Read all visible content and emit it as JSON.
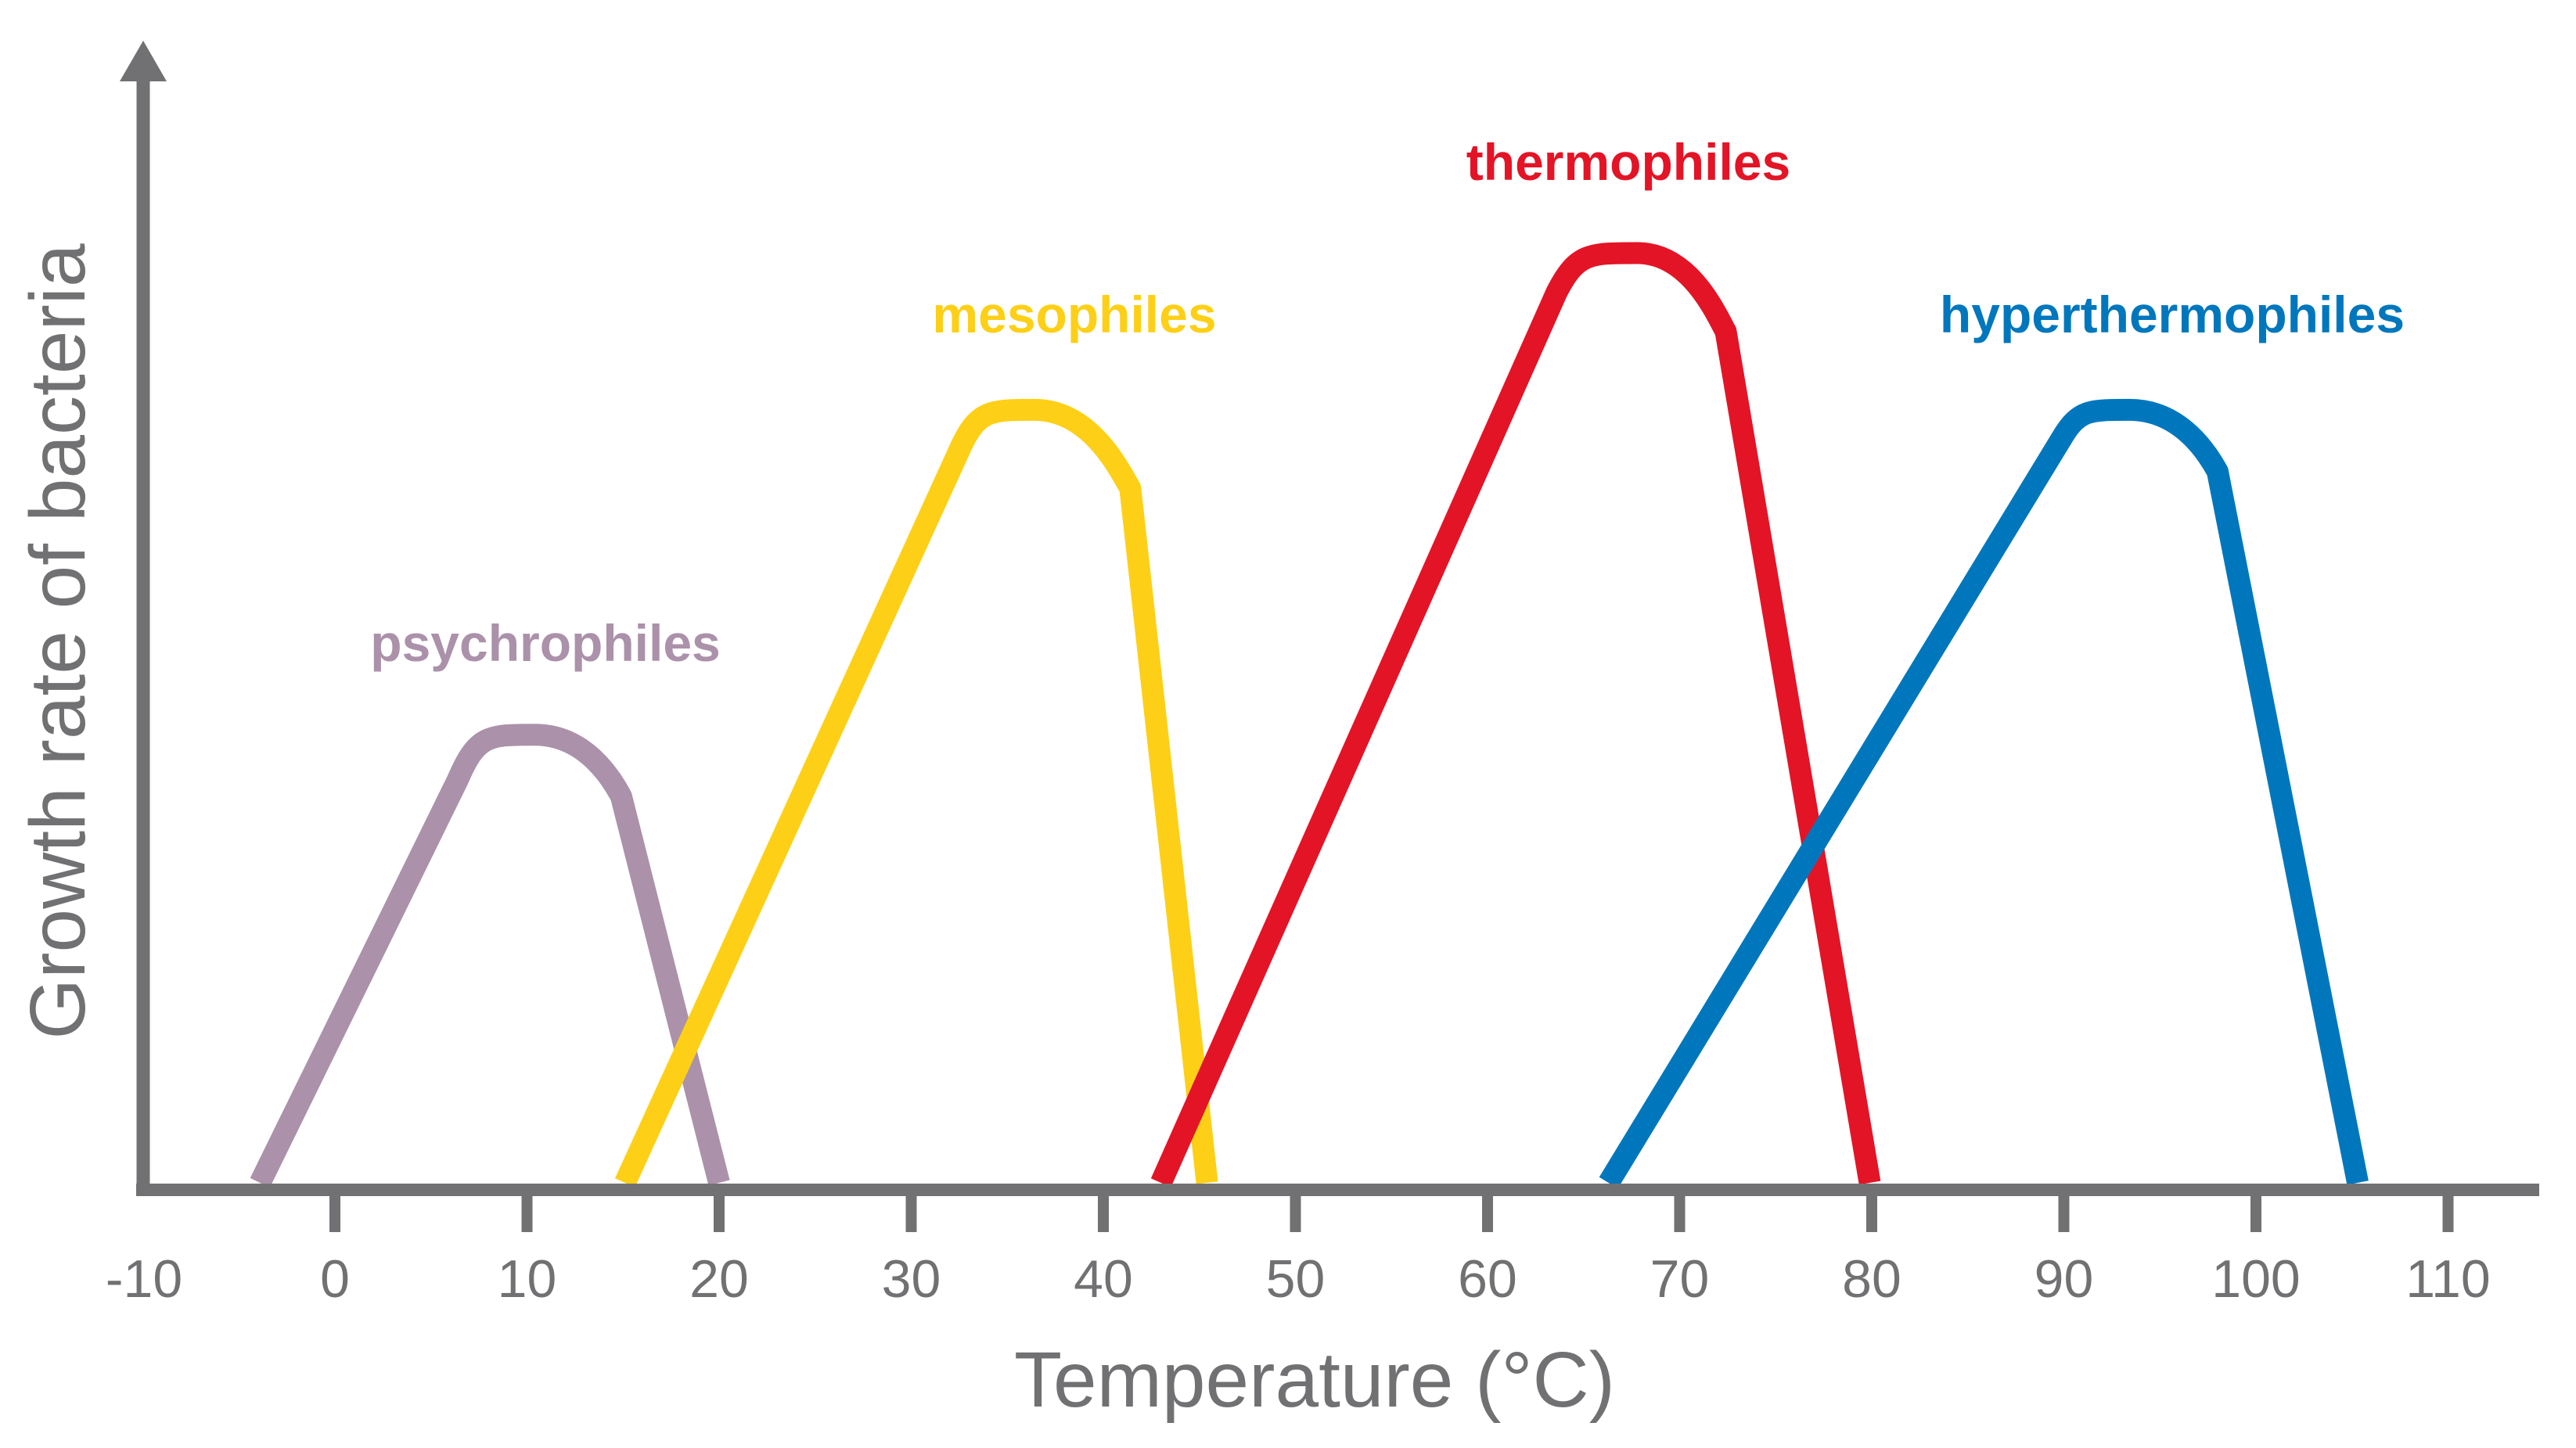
{
  "chart_data": {
    "type": "line",
    "title": "",
    "xlabel": "Temperature (°C)",
    "ylabel": "Growth rate of bacteria",
    "xlim": [
      -10,
      115
    ],
    "ylim": [
      0,
      100
    ],
    "x_ticks": [
      -10,
      0,
      10,
      20,
      30,
      40,
      50,
      60,
      70,
      80,
      90,
      100,
      110
    ],
    "x_tick_labels": [
      "-10",
      "0",
      "10",
      "20",
      "30",
      "40",
      "50",
      "60",
      "70",
      "80",
      "90",
      "100",
      "110"
    ],
    "grid": false,
    "legend": "inline labels above each curve",
    "axis_color": "#717174",
    "series": [
      {
        "name": "psychrophiles",
        "color": "#ab91aa",
        "points": [
          [
            -3.9,
            0
          ],
          [
            6.4,
            36
          ],
          [
            10.4,
            40
          ],
          [
            14.9,
            34.5
          ],
          [
            20,
            0
          ]
        ]
      },
      {
        "name": "mesophiles",
        "color": "#fdd017",
        "points": [
          [
            15.1,
            0
          ],
          [
            32.4,
            65
          ],
          [
            36.4,
            69
          ],
          [
            41.4,
            62
          ],
          [
            45.4,
            0
          ]
        ]
      },
      {
        "name": "thermophiles",
        "color": "#e31426",
        "points": [
          [
            43,
            0
          ],
          [
            63.6,
            79.5
          ],
          [
            67.8,
            83
          ],
          [
            72.4,
            76
          ],
          [
            79.9,
            0
          ]
        ]
      },
      {
        "name": "hyperthermophiles",
        "color": "#0077bd",
        "points": [
          [
            66.3,
            0
          ],
          [
            89.9,
            66.5
          ],
          [
            93.4,
            69
          ],
          [
            98,
            63.5
          ],
          [
            105.3,
            0
          ]
        ]
      }
    ]
  }
}
